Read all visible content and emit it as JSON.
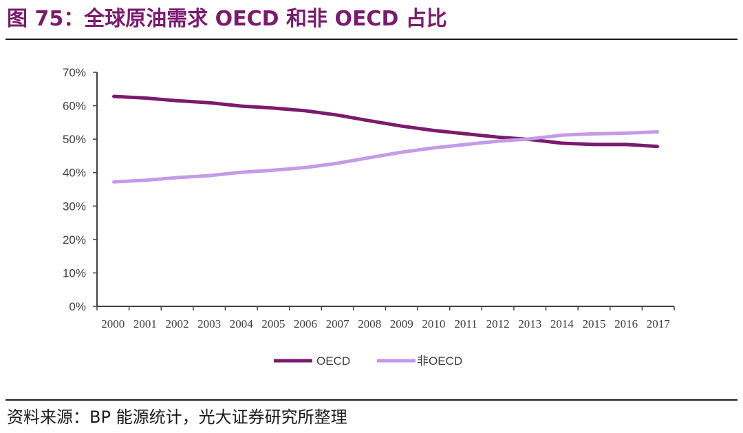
{
  "header": {
    "title": "图 75：全球原油需求 OECD 和非 OECD 占比"
  },
  "footer": {
    "source": "资料来源：BP 能源统计，光大证券研究所整理"
  },
  "colors": {
    "oecd": "#7b1a6e",
    "non_oecd": "#c39be8",
    "title": "#7b1a6e",
    "axis": "#404040"
  },
  "chart_data": {
    "type": "line",
    "title": "",
    "xlabel": "",
    "ylabel": "",
    "ylim": [
      0,
      70
    ],
    "y_ticks": [
      "0%",
      "10%",
      "20%",
      "30%",
      "40%",
      "50%",
      "60%",
      "70%"
    ],
    "categories": [
      "2000",
      "2001",
      "2002",
      "2003",
      "2004",
      "2005",
      "2006",
      "2007",
      "2008",
      "2009",
      "2010",
      "2011",
      "2012",
      "2013",
      "2014",
      "2015",
      "2016",
      "2017"
    ],
    "series": [
      {
        "name": "OECD",
        "values": [
          62.8,
          62.3,
          61.5,
          60.9,
          59.9,
          59.3,
          58.5,
          57.2,
          55.5,
          53.9,
          52.6,
          51.6,
          50.6,
          49.9,
          48.8,
          48.4,
          48.4,
          47.8
        ]
      },
      {
        "name": "非OECD",
        "values": [
          37.2,
          37.7,
          38.5,
          39.1,
          40.1,
          40.7,
          41.5,
          42.8,
          44.5,
          46.1,
          47.4,
          48.4,
          49.4,
          50.1,
          51.2,
          51.6,
          51.8,
          52.2
        ]
      }
    ],
    "grid": false,
    "legend_position": "bottom-center"
  }
}
